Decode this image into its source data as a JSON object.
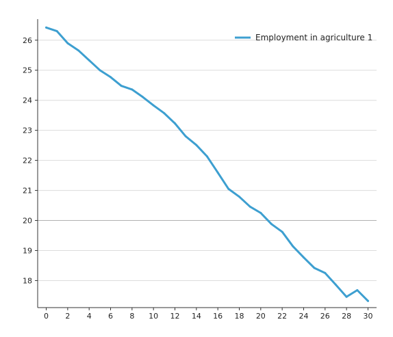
{
  "chart_data": {
    "type": "line",
    "title": "",
    "xlabel": "",
    "ylabel": "",
    "xlim": [
      -0.8,
      30.8
    ],
    "ylim": [
      17.1,
      26.7
    ],
    "x_ticks": [
      0,
      2,
      4,
      6,
      8,
      10,
      12,
      14,
      16,
      18,
      20,
      22,
      24,
      26,
      28,
      30
    ],
    "y_ticks": [
      18,
      19,
      20,
      21,
      22,
      23,
      24,
      25,
      26
    ],
    "emphasized_gridline": 20,
    "grid": true,
    "legend_position": "top-right",
    "colors": {
      "series": "#3d9fd0",
      "grid": "#dcdcdc",
      "grid_emphasis": "#b0b0b0",
      "axis": "#333333"
    },
    "series": [
      {
        "name": "Employment in agriculture 1",
        "x": [
          0,
          1,
          2,
          3,
          4,
          5,
          6,
          7,
          8,
          9,
          10,
          11,
          12,
          13,
          14,
          15,
          16,
          17,
          18,
          19,
          20,
          21,
          22,
          23,
          24,
          25,
          26,
          27,
          28,
          29,
          30
        ],
        "values": [
          26.42,
          26.3,
          25.9,
          25.66,
          25.33,
          25.0,
          24.77,
          24.48,
          24.36,
          24.11,
          23.83,
          23.57,
          23.23,
          22.8,
          22.51,
          22.13,
          21.59,
          21.05,
          20.79,
          20.46,
          20.25,
          19.88,
          19.62,
          19.14,
          18.77,
          18.42,
          18.25,
          17.86,
          17.46,
          17.68,
          17.32
        ]
      }
    ]
  }
}
